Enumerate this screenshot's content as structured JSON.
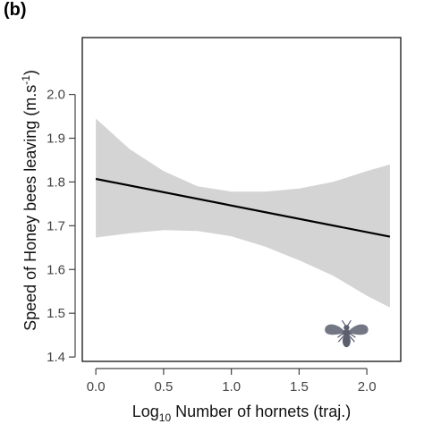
{
  "panel_label": "(b)",
  "chart_data": {
    "type": "line",
    "xlabel": {
      "prefix": "Log",
      "subscript": "10",
      "rest": " Number of hornets (traj.)"
    },
    "ylabel": {
      "main": "Speed of Honey bees leaving (m.s",
      "superscript": "-1",
      "end": ")"
    },
    "xlim": [
      -0.1,
      2.25
    ],
    "ylim": [
      1.39,
      2.13
    ],
    "x_ticks": [
      0.0,
      0.5,
      1.0,
      1.5,
      2.0
    ],
    "x_tick_labels": [
      "0.0",
      "0.5",
      "1.0",
      "1.5",
      "2.0"
    ],
    "y_ticks": [
      1.4,
      1.5,
      1.6,
      1.7,
      1.8,
      1.9,
      2.0
    ],
    "y_tick_labels": [
      "1.4",
      "1.5",
      "1.6",
      "1.7",
      "1.8",
      "1.9",
      "2.0"
    ],
    "series": [
      {
        "values_x": [
          0.0,
          2.17
        ],
        "values_y": [
          1.807,
          1.675
        ],
        "color": "#000000"
      }
    ],
    "confidence_band": {
      "x": [
        0.0,
        0.25,
        0.5,
        0.75,
        1.0,
        1.25,
        1.5,
        1.75,
        2.0,
        2.17
      ],
      "upper": [
        1.945,
        1.875,
        1.825,
        1.79,
        1.778,
        1.778,
        1.785,
        1.8,
        1.825,
        1.84
      ],
      "lower": [
        1.673,
        1.683,
        1.69,
        1.688,
        1.676,
        1.652,
        1.621,
        1.586,
        1.54,
        1.513
      ],
      "color": "#d4d4d4"
    },
    "grid": false,
    "icon": {
      "name": "hornet-icon",
      "x": 1.85,
      "y": 1.455,
      "color": "#5b5f6e"
    }
  }
}
